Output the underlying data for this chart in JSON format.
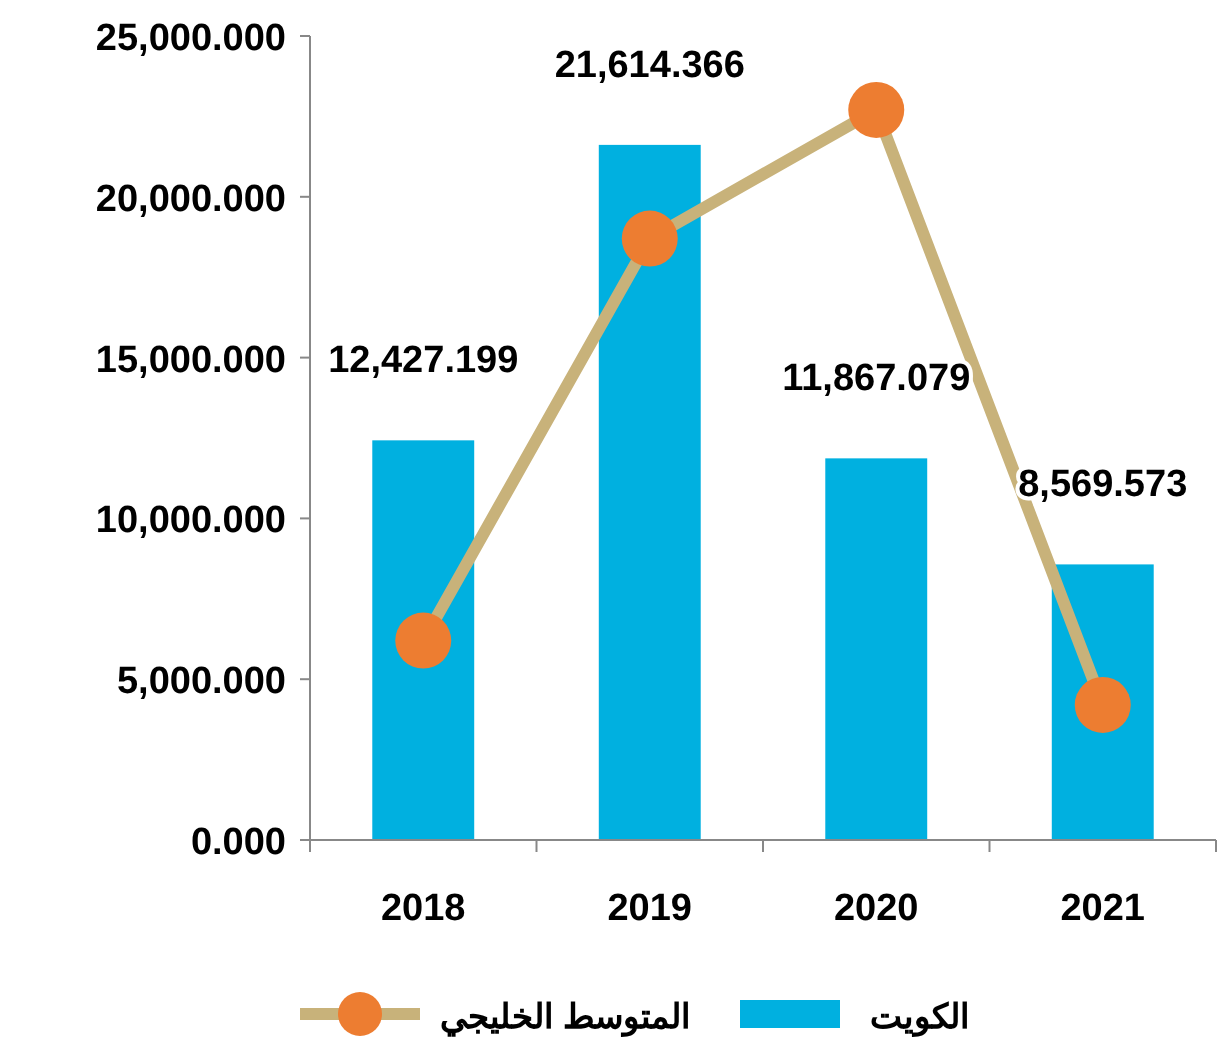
{
  "chart_data": {
    "type": "bar",
    "categories": [
      "2018",
      "2019",
      "2020",
      "2021"
    ],
    "series": [
      {
        "name": "الكويت",
        "color": "#00b0e0",
        "values": [
          12427.199,
          21614.366,
          11867.079,
          8569.573
        ],
        "value_labels": [
          "12,427.199",
          "21,614.366",
          "11,867.079",
          "8,569.573"
        ]
      },
      {
        "name": "المتوسط الخليجي",
        "type": "line",
        "color": "#c8b27a",
        "colors": [
          "#ed7d31",
          "#ed7d31",
          "#ed7d31",
          "#ed7d31"
        ],
        "marker": "circle",
        "values": [
          6200,
          18700,
          22700,
          4200
        ]
      }
    ],
    "ylim": [
      0,
      25000
    ],
    "yticks": [
      {
        "value": 0,
        "label": "0.000"
      },
      {
        "value": 5000,
        "label": "5,000.000"
      },
      {
        "value": 10000,
        "label": "10,000.000"
      },
      {
        "value": 15000,
        "label": "15,000.000"
      },
      {
        "value": 20000,
        "label": "20,000.000"
      },
      {
        "value": 25000,
        "label": "25,000.000"
      }
    ],
    "grid": false,
    "legend": "bottom"
  }
}
